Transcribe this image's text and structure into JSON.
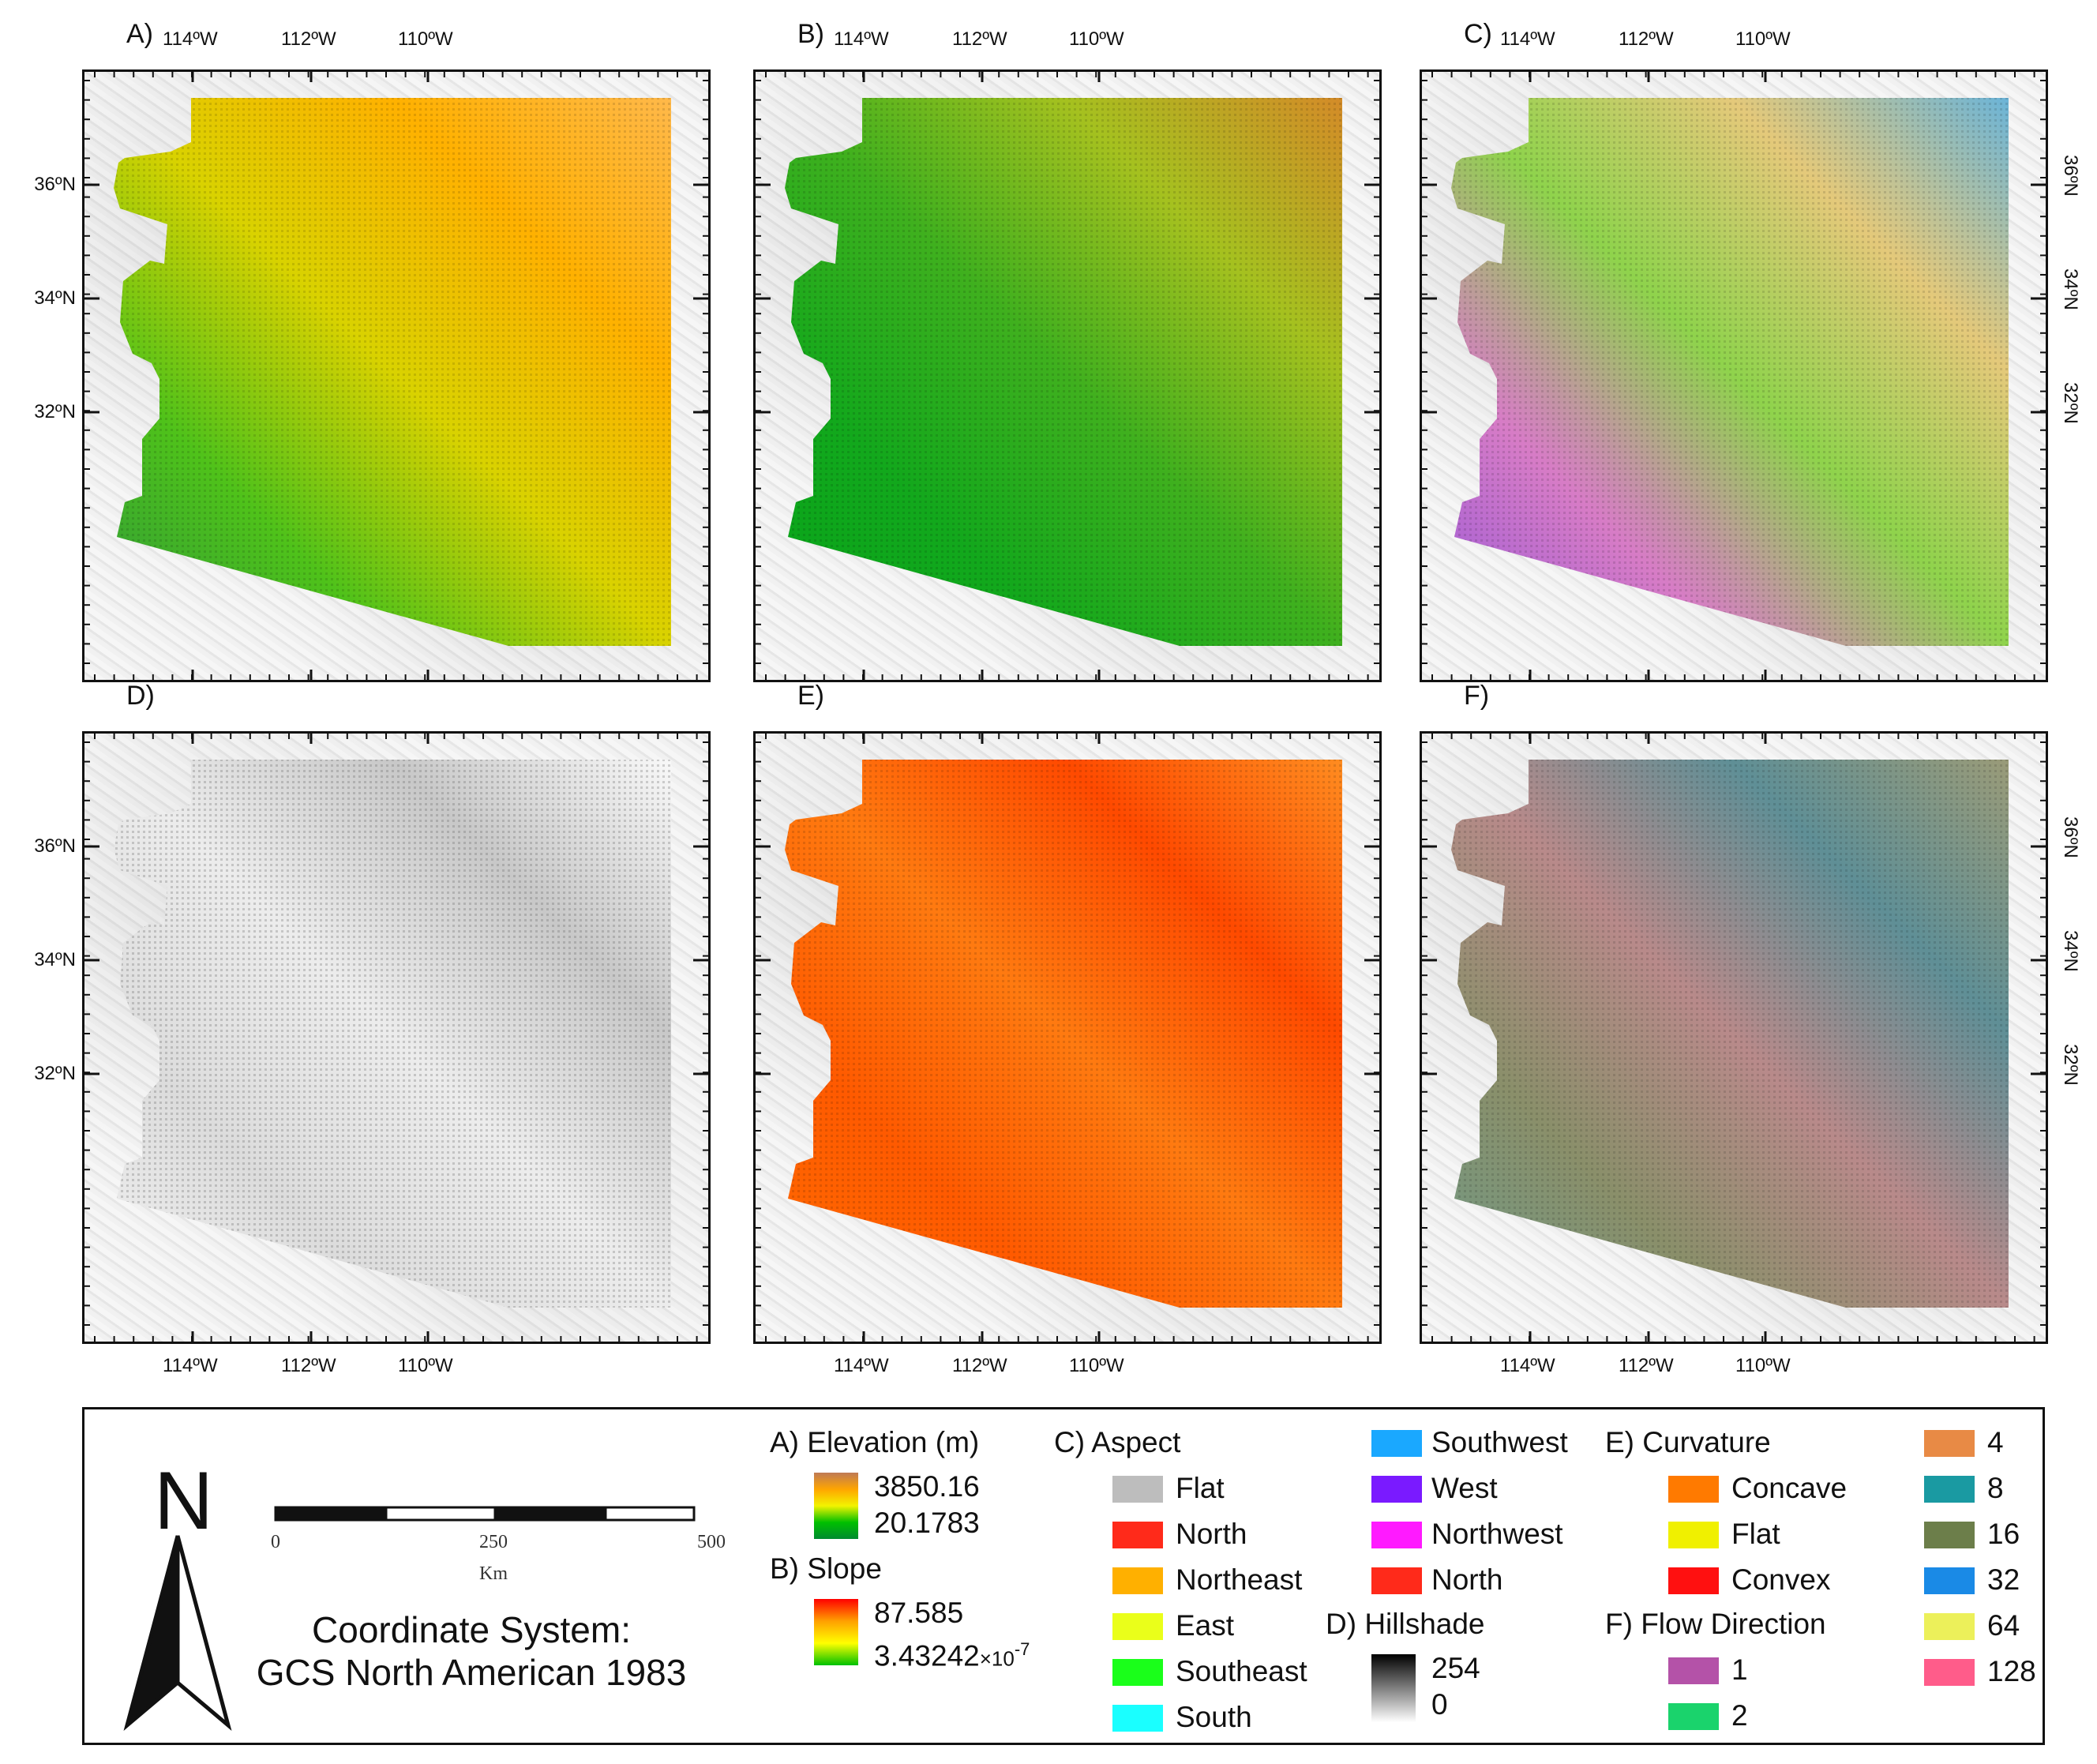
{
  "panels": [
    {
      "letter": "A)",
      "name": "elevation",
      "top_lon_labels": true,
      "bottom_lon_labels": false,
      "left_lat_labels": true,
      "right_lat_labels": false
    },
    {
      "letter": "B)",
      "name": "slope",
      "top_lon_labels": true,
      "bottom_lon_labels": false,
      "left_lat_labels": false,
      "right_lat_labels": false
    },
    {
      "letter": "C)",
      "name": "aspect",
      "top_lon_labels": true,
      "bottom_lon_labels": false,
      "left_lat_labels": false,
      "right_lat_labels": true
    },
    {
      "letter": "D)",
      "name": "hillshade",
      "top_lon_labels": false,
      "bottom_lon_labels": true,
      "left_lat_labels": true,
      "right_lat_labels": false
    },
    {
      "letter": "E)",
      "name": "curvature",
      "top_lon_labels": false,
      "bottom_lon_labels": true,
      "left_lat_labels": false,
      "right_lat_labels": false
    },
    {
      "letter": "F)",
      "name": "flow-direction",
      "top_lon_labels": false,
      "bottom_lon_labels": true,
      "left_lat_labels": false,
      "right_lat_labels": true
    }
  ],
  "lon_labels": [
    "114ºW",
    "112ºW",
    "110ºW"
  ],
  "lat_labels": [
    "36ºN",
    "34ºN",
    "32ºN"
  ],
  "legend": {
    "north_letter": "N",
    "scale": {
      "ticks": [
        "0",
        "250",
        "500"
      ],
      "unit": "Km"
    },
    "coordinate_system_line1": "Coordinate System:",
    "coordinate_system_line2": "GCS North American 1983",
    "elevation": {
      "title": "A) Elevation (m)",
      "max": "3850.16",
      "min": "20.1783",
      "colors": [
        "#c07a55",
        "#ffa500",
        "#f3f300",
        "#00c000",
        "#008a30"
      ]
    },
    "slope": {
      "title": "B) Slope",
      "max": "87.585",
      "min": "3.43242",
      "min_suffix": "×10",
      "min_exp": "-7",
      "colors": [
        "#ff0000",
        "#ffa000",
        "#ffff00",
        "#00c000"
      ]
    },
    "aspect": {
      "title": "C) Aspect",
      "items": [
        {
          "label": "Flat",
          "color": "#bdbdbd"
        },
        {
          "label": "North",
          "color": "#ff2a1a"
        },
        {
          "label": "Northeast",
          "color": "#ffb000"
        },
        {
          "label": "East",
          "color": "#eaff1a"
        },
        {
          "label": "Southeast",
          "color": "#1aff1a"
        },
        {
          "label": "South",
          "color": "#1affff"
        },
        {
          "label": "Southwest",
          "color": "#1aa8ff"
        },
        {
          "label": "West",
          "color": "#7a1aff"
        },
        {
          "label": "Northwest",
          "color": "#ff1aff"
        },
        {
          "label": "North",
          "color": "#ff2a1a"
        }
      ]
    },
    "hillshade": {
      "title": "D) Hillshade",
      "max": "254",
      "min": "0"
    },
    "curvature": {
      "title": "E) Curvature",
      "items": [
        {
          "label": "Concave",
          "color": "#ff7a00"
        },
        {
          "label": "Flat",
          "color": "#f0f000"
        },
        {
          "label": "Convex",
          "color": "#ff1010"
        }
      ]
    },
    "flow_direction": {
      "title": "F) Flow Direction",
      "items": [
        {
          "label": "1",
          "color": "#b452a8"
        },
        {
          "label": "2",
          "color": "#1ad36c"
        },
        {
          "label": "4",
          "color": "#e88a45"
        },
        {
          "label": "8",
          "color": "#1a9aa2"
        },
        {
          "label": "16",
          "color": "#6c7e4a"
        },
        {
          "label": "32",
          "color": "#1a8ae6"
        },
        {
          "label": "64",
          "color": "#ecf05a"
        },
        {
          "label": "128",
          "color": "#ff5c8a"
        }
      ]
    }
  }
}
